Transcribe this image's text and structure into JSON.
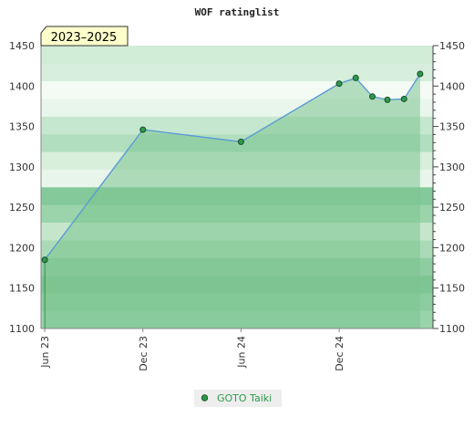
{
  "chart_data": {
    "type": "area",
    "title": "WOF ratinglist",
    "badge": "2023–2025",
    "ylim": [
      1100,
      1450
    ],
    "yticks": [
      1100,
      1150,
      1200,
      1250,
      1300,
      1350,
      1400,
      1450
    ],
    "x_ticks": [
      "Jun 23",
      "Dec 23",
      "Jun 24",
      "Dec 24"
    ],
    "x_tick_dates": [
      "2023-06-01",
      "2023-12-01",
      "2024-06-01",
      "2024-12-01"
    ],
    "x_range": [
      "2023-05-25",
      "2025-05-25"
    ],
    "series": [
      {
        "name": "GOTO Taiki",
        "color": "#5b9bd5",
        "fill": "#7cc48f",
        "points": [
          {
            "x": "2023-06-01",
            "y": 1185
          },
          {
            "x": "2023-12-01",
            "y": 1346
          },
          {
            "x": "2024-06-01",
            "y": 1331
          },
          {
            "x": "2024-12-01",
            "y": 1403
          },
          {
            "x": "2025-01-01",
            "y": 1410
          },
          {
            "x": "2025-02-01",
            "y": 1387
          },
          {
            "x": "2025-03-01",
            "y": 1383
          },
          {
            "x": "2025-04-01",
            "y": 1384
          },
          {
            "x": "2025-05-01",
            "y": 1415
          }
        ]
      }
    ],
    "legend_position": "bottom",
    "grid": "horizontal-bands"
  }
}
